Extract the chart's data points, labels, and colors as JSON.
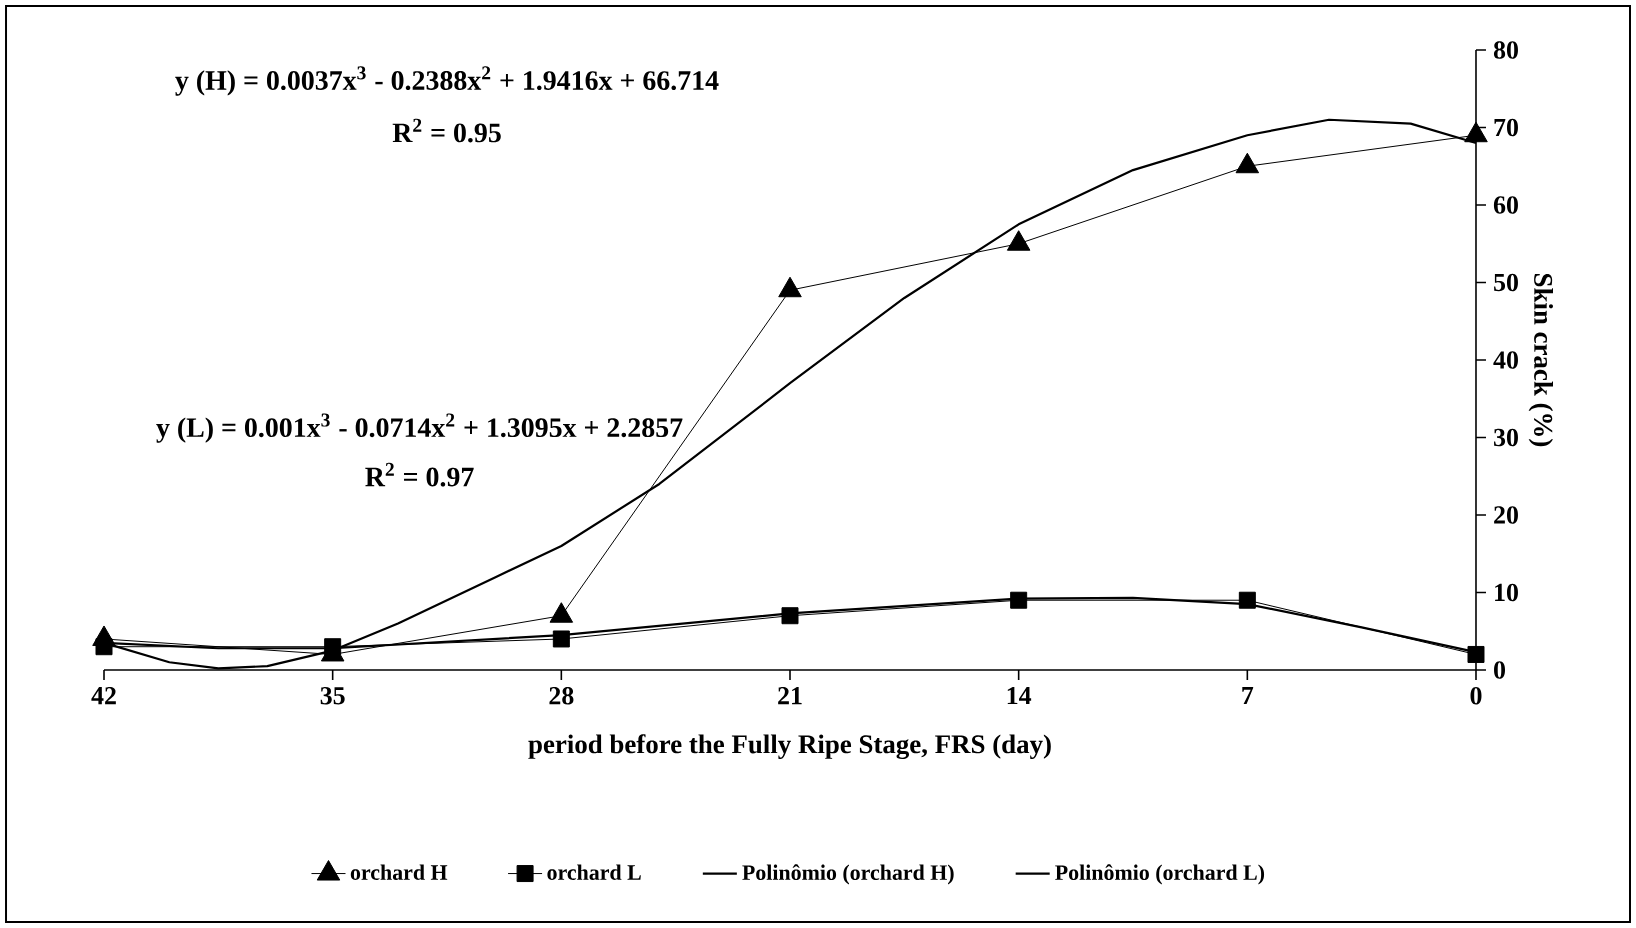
{
  "chart_data": {
    "type": "line",
    "xlabel": "period before the Fully Ripe Stage, FRS (day)",
    "ylabel": "Skin crack (%)",
    "xlim": [
      42,
      0
    ],
    "xticks": [
      42,
      35,
      28,
      21,
      14,
      7,
      0
    ],
    "ylim": [
      0,
      80
    ],
    "yticks": [
      0,
      10,
      20,
      30,
      40,
      50,
      60,
      70,
      80
    ],
    "grid": false,
    "legend": "bottom",
    "line_style": "solid",
    "annotations": [
      "y (H) = 0.0037x$^{3}$ - 0.2388x$^{2}$ + 1.9416x + 66.714",
      "R$^{2}$ = 0.95",
      "y (L) = 0.001x$^{3}$ - 0.0714x$^{2}$ + 1.3095x + 2.2857",
      "R$^{2}$ = 0.97"
    ],
    "series": [
      {
        "name": "orchard H",
        "color": "#000000",
        "marker": "triangle",
        "x": [
          42,
          35,
          28,
          21,
          14,
          7,
          0
        ],
        "values": [
          4,
          2,
          7,
          49,
          55,
          65,
          69
        ]
      },
      {
        "name": "orchard L",
        "color": "#000000",
        "marker": "square",
        "x": [
          42,
          35,
          28,
          21,
          14,
          7,
          0
        ],
        "values": [
          3,
          3,
          4,
          7,
          9,
          9,
          2
        ]
      },
      {
        "name": "Polinômio (orchard H)",
        "color": "#000000",
        "marker": "none",
        "x": [
          42,
          40,
          38.5,
          37,
          35,
          33,
          30,
          28,
          25,
          21,
          17.5,
          14,
          10.5,
          7,
          4.5,
          2,
          0
        ],
        "values": [
          3.5,
          1,
          0.2,
          0.5,
          2.5,
          6,
          12,
          16,
          24,
          37,
          48,
          57.5,
          64.5,
          69,
          71,
          70.5,
          68
        ]
      },
      {
        "name": "Polinômio (orchard L)",
        "color": "#000000",
        "marker": "none",
        "x": [
          42,
          38.5,
          35,
          28,
          21,
          14,
          10.5,
          7,
          3.5,
          0
        ],
        "values": [
          3.5,
          2.8,
          2.8,
          4.5,
          7.3,
          9.2,
          9.3,
          8.5,
          5.5,
          2.3
        ]
      }
    ]
  }
}
